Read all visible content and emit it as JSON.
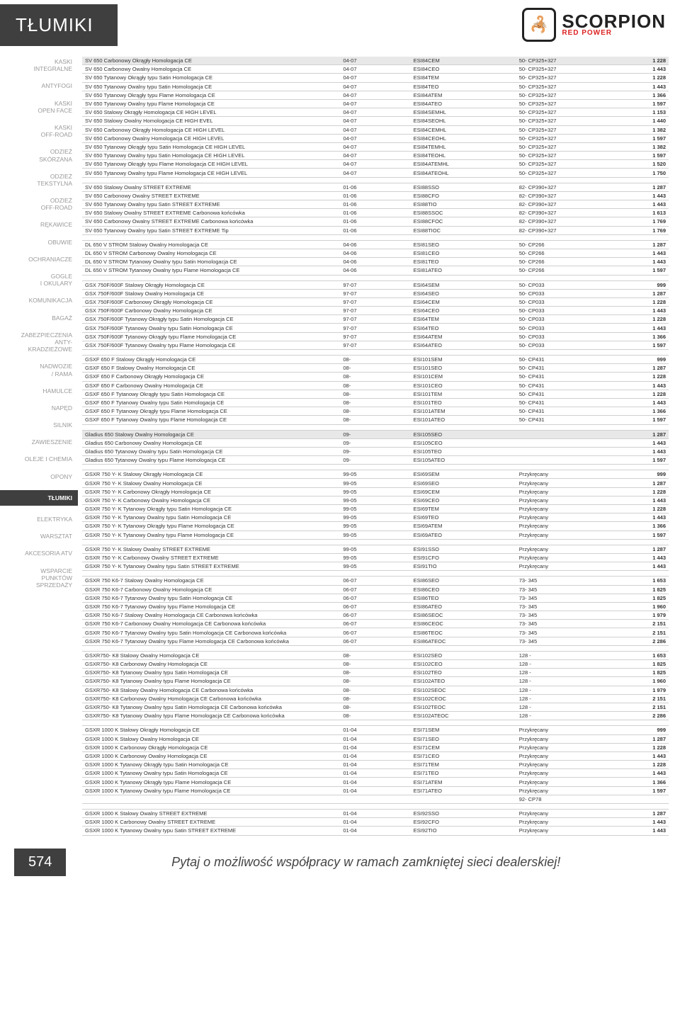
{
  "header": {
    "title": "TŁUMIKI",
    "logo_main": "SCORPION",
    "logo_sub": "RED POWER",
    "logo_glyph": "🦂"
  },
  "sidebar": [
    "KASKI\nINTEGRALNE",
    "ANTYFOGI",
    "KASKI\nOPEN FACE",
    "KASKI\nOFF-ROAD",
    "ODZIEŻ\nSKÓRZANA",
    "ODZIEŻ\nTEKSTYLNA",
    "ODZIEŻ\nOFF-ROAD",
    "RĘKAWICE",
    "OBUWIE",
    "OCHRANIACZE",
    "GOGLE\nI OKULARY",
    "KOMUNIKACJA",
    "BAGAŻ",
    "ZABEZPIECZENIA\nANTY-\nKRADZIEŻOWE",
    "NADWOZIE\n/ RAMA",
    "HAMULCE",
    "NAPĘD",
    "SILNIK",
    "ZAWIESZENIE",
    "OLEJE I CHEMIA",
    "OPONY",
    "TŁUMIKI",
    "ELEKTRYKA",
    "WARSZTAT",
    "AKCESORIA ATV",
    "WSPARCIE\nPUNKTÓW\nSPRZEDAŻY"
  ],
  "sidebar_active_index": 21,
  "colors": {
    "header_bg": "#3f3f3f",
    "header_fg": "#ffffff",
    "shade_bg": "#e8e8e8",
    "border": "#d0d0d0",
    "muted": "#999999",
    "accent_red": "#d22222"
  },
  "footer": {
    "page": "574",
    "slogan": "Pytaj o możliwość współpracy w ramach zamkniętej sieci dealerskiej!"
  },
  "groups": [
    {
      "rows": [
        {
          "name": "SV 650 Carbonowy Okrągły Homologacja CE",
          "yr": "04-07",
          "code": "ESI84CEM",
          "spec": "50- CP325+327",
          "price": "1 228",
          "shade": true
        },
        {
          "name": "SV 650 Carbonowy Owalny Homologacja CE",
          "yr": "04-07",
          "code": "ESI84CEO",
          "spec": "50- CP325+327",
          "price": "1 443"
        },
        {
          "name": "SV 650 Tytanowy Okrągły typu Satin Homologacja CE",
          "yr": "04-07",
          "code": "ESI84TEM",
          "spec": "50- CP325+327",
          "price": "1 228"
        },
        {
          "name": "SV 650 Tytanowy Owalny typu Satin Homologacja CE",
          "yr": "04-07",
          "code": "ESI84TEO",
          "spec": "50- CP325+327",
          "price": "1 443"
        },
        {
          "name": "SV 650 Tytanowy Okrągły typu Flame Homologacja CE",
          "yr": "04-07",
          "code": "ESI84ATEM",
          "spec": "50- CP325+327",
          "price": "1 366"
        },
        {
          "name": "SV 650 Tytanowy Owalny typu Flame Homologacja CE",
          "yr": "04-07",
          "code": "ESI84ATEO",
          "spec": "50- CP325+327",
          "price": "1 597"
        },
        {
          "name": "SV 650 Stalowy Okrągły Homologacja CE  HIGH LEVEL",
          "yr": "04-07",
          "code": "ESI84SEMHL",
          "spec": "50- CP325+327",
          "price": "1 153"
        },
        {
          "name": "SV 650 Stalowy Owalny Homologacja CE  HIGH EVEL",
          "yr": "04-07",
          "code": "ESI84SEOHL",
          "spec": "50- CP325+327",
          "price": "1 440"
        },
        {
          "name": "SV 650 Carbonowy Okrągły Homologacja CE  HIGH LEVEL",
          "yr": "04-07",
          "code": "ESI84CEMHL",
          "spec": "50- CP325+327",
          "price": "1 382"
        },
        {
          "name": "SV 650 Carbonowy Owalny Homologacja CE  HIGH LEVEL",
          "yr": "04-07",
          "code": "ESI84CEOHL",
          "spec": "50- CP325+327",
          "price": "1 597"
        },
        {
          "name": "SV 650 Tytanowy Okrągły typu Satin Homologacja CE  HIGH LEVEL",
          "yr": "04-07",
          "code": "ESI84TEMHL",
          "spec": "50- CP325+327",
          "price": "1 382"
        },
        {
          "name": "SV 650 Tytanowy Owalny typu Satin Homologacja CE  HIGH LEVEL",
          "yr": "04-07",
          "code": "ESI84TEOHL",
          "spec": "50- CP325+327",
          "price": "1 597"
        },
        {
          "name": "SV 650 Tytanowy Okrągły typu Flame Homologacja CE  HIGH LEVEL",
          "yr": "04-07",
          "code": "ESI84ATEMHL",
          "spec": "50- CP325+327",
          "price": "1 520"
        },
        {
          "name": "SV 650 Tytanowy Owalny typu Flame Homologacja CE  HIGH LEVEL",
          "yr": "04-07",
          "code": "ESI84ATEOHL",
          "spec": "50- CP325+327",
          "price": "1 750"
        }
      ]
    },
    {
      "rows": [
        {
          "name": "SV 650 Stalowy Owalny STREET EXTREME",
          "yr": "01-06",
          "code": "ESI88SSO",
          "spec": "82- CP390+327",
          "price": "1 287"
        },
        {
          "name": "SV 650 Carbonowy Owalny STREET EXTREME",
          "yr": "01-06",
          "code": "ESI88CFO",
          "spec": "82- CP390+327",
          "price": "1 443"
        },
        {
          "name": "SV 650 Tytanowy Owalny typu Satin STREET EXTREME",
          "yr": "01-06",
          "code": "ESI88TIO",
          "spec": "82- CP390+327",
          "price": "1 443"
        },
        {
          "name": "SV 650 Stalowy Owalny STREET EXTREME Carbonowa końcówka",
          "yr": "01-06",
          "code": "ESI88SSOC",
          "spec": "82- CP390+327",
          "price": "1 613"
        },
        {
          "name": "SV 650 Carbonowy Owalny STREET EXTREME Carbonowa końcówka",
          "yr": "01-06",
          "code": "ESI88CFOC",
          "spec": "82- CP390+327",
          "price": "1 769"
        },
        {
          "name": "SV 650 Tytanowy Owalny typu Satin STREET EXTREME Tip",
          "yr": "01-06",
          "code": "ESI88TIOC",
          "spec": "82- CP390+327",
          "price": "1 769"
        }
      ]
    },
    {
      "rows": [
        {
          "name": "DL 650 V STROM Stalowy Owalny Homologacja CE",
          "yr": "04-06",
          "code": "ESI81SEO",
          "spec": "50- CP266",
          "price": "1 287"
        },
        {
          "name": "DL 650 V STROM Carbonowy Owalny Homologacja CE",
          "yr": "04-06",
          "code": "ESI81CEO",
          "spec": "50- CP266",
          "price": "1 443"
        },
        {
          "name": "DL 650 V STROM Tytanowy Owalny typu Satin Homologacja CE",
          "yr": "04-06",
          "code": "ESI81TEO",
          "spec": "50- CP266",
          "price": "1 443"
        },
        {
          "name": "DL 650 V STROM Tytanowy Owalny typu Flame Homologacja CE",
          "yr": "04-06",
          "code": "ESI81ATEO",
          "spec": "50- CP266",
          "price": "1 597"
        }
      ]
    },
    {
      "rows": [
        {
          "name": "GSX 750F/600F Stalowy Okrągły Homologacja CE",
          "yr": "97-07",
          "code": "ESI64SEM",
          "spec": "50- CP033",
          "price": "999"
        },
        {
          "name": "GSX 750F/600F Stalowy Owalny Homologacja CE",
          "yr": "97-07",
          "code": "ESI64SEO",
          "spec": "50- CP033",
          "price": "1 287"
        },
        {
          "name": "GSX 750F/600F Carbonowy Okrągły Homologacja CE",
          "yr": "97-07",
          "code": "ESI64CEM",
          "spec": "50- CP033",
          "price": "1 228"
        },
        {
          "name": "GSX 750F/600F Carbonowy Owalny Homologacja CE",
          "yr": "97-07",
          "code": "ESI64CEO",
          "spec": "50- CP033",
          "price": "1 443"
        },
        {
          "name": "GSX 750F/600F Tytanowy Okrągły typu Satin Homologacja CE",
          "yr": "97-07",
          "code": "ESI64TEM",
          "spec": "50- CP033",
          "price": "1 228"
        },
        {
          "name": "GSX 750F/600F Tytanowy Owalny typu Satin Homologacja CE",
          "yr": "97-07",
          "code": "ESI64TEO",
          "spec": "50- CP033",
          "price": "1 443"
        },
        {
          "name": "GSX 750F/600F Tytanowy Okrągły typu Flame Homologacja CE",
          "yr": "97-07",
          "code": "ESI64ATEM",
          "spec": "50- CP033",
          "price": "1 366"
        },
        {
          "name": "GSX 750F/600F Tytanowy Owalny typu Flame Homologacja CE",
          "yr": "97-07",
          "code": "ESI64ATEO",
          "spec": "50- CP033",
          "price": "1 597"
        }
      ]
    },
    {
      "rows": [
        {
          "name": "GSXF 650 F Stalowy Okrągły Homologacja CE",
          "yr": "08-",
          "code": "ESI101SEM",
          "spec": "50- CP431",
          "price": "999"
        },
        {
          "name": "GSXF 650 F Stalowy Owalny Homologacja CE",
          "yr": "08-",
          "code": "ESI101SEO",
          "spec": "50- CP431",
          "price": "1 287"
        },
        {
          "name": "GSXF 650 F Carbonowy Okrągły Homologacja CE",
          "yr": "08-",
          "code": "ESI101CEM",
          "spec": "50- CP431",
          "price": "1 228"
        },
        {
          "name": "GSXF 650 F Carbonowy Owalny Homologacja CE",
          "yr": "08-",
          "code": "ESI101CEO",
          "spec": "50- CP431",
          "price": "1 443"
        },
        {
          "name": "GSXF 650 F Tytanowy Okrągły typu Satin Homologacja CE",
          "yr": "08-",
          "code": "ESI101TEM",
          "spec": "50- CP431",
          "price": "1 228"
        },
        {
          "name": "GSXF 650 F Tytanowy Owalny typu Satin Homologacja CE",
          "yr": "08-",
          "code": "ESI101TEO",
          "spec": "50- CP431",
          "price": "1 443"
        },
        {
          "name": "GSXF 650 F Tytanowy Okrągły typu Flame Homologacja CE",
          "yr": "08-",
          "code": "ESI101ATEM",
          "spec": "50- CP431",
          "price": "1 366"
        },
        {
          "name": "GSXF 650 F Tytanowy Owalny typu Flame Homologacja CE",
          "yr": "08-",
          "code": "ESI101ATEO",
          "spec": "50- CP431",
          "price": "1 597"
        }
      ]
    },
    {
      "rows": [
        {
          "name": "Gladius 650 Stalowy Owalny Homologacja CE",
          "yr": "09-",
          "code": "ESI105SEO",
          "spec": "",
          "price": "1 287",
          "shade": true
        },
        {
          "name": "Gladius 650 Carbonowy Owalny Homologacja CE",
          "yr": "09-",
          "code": "ESI105CEO",
          "spec": "",
          "price": "1 443"
        },
        {
          "name": "Gladius 650 Tytanowy Owalny typu Satin Homologacja CE",
          "yr": "09-",
          "code": "ESI105TEO",
          "spec": "",
          "price": "1 443"
        },
        {
          "name": "Gladius 650 Tytanowy Owalny typu Flame Homologacja CE",
          "yr": "09-",
          "code": "ESI105ATEO",
          "spec": "",
          "price": "1 597"
        }
      ]
    },
    {
      "rows": [
        {
          "name": "GSXR 750 Y- K Stalowy Okrągły Homologacja CE",
          "yr": "99-05",
          "code": "ESI69SEM",
          "spec": "Przykręcany",
          "price": "999"
        },
        {
          "name": "GSXR 750 Y- K Stalowy Owalny Homologacja CE",
          "yr": "99-05",
          "code": "ESI69SEO",
          "spec": "Przykręcany",
          "price": "1 287"
        },
        {
          "name": "GSXR 750 Y- K Carbonowy Okrągły Homologacja CE",
          "yr": "99-05",
          "code": "ESI69CEM",
          "spec": "Przykręcany",
          "price": "1 228"
        },
        {
          "name": "GSXR 750 Y- K Carbonowy Owalny Homologacja CE",
          "yr": "99-05",
          "code": "ESI69CEO",
          "spec": "Przykręcany",
          "price": "1 443"
        },
        {
          "name": "GSXR 750 Y- K Tytanowy Okrągły typu Satin Homologacja CE",
          "yr": "99-05",
          "code": "ESI69TEM",
          "spec": "Przykręcany",
          "price": "1 228"
        },
        {
          "name": "GSXR 750 Y- K Tytanowy Owalny typu Satin Homologacja CE",
          "yr": "99-05",
          "code": "ESI69TEO",
          "spec": "Przykręcany",
          "price": "1 443"
        },
        {
          "name": "GSXR 750 Y- K Tytanowy Okrągły typu Flame Homologacja CE",
          "yr": "99-05",
          "code": "ESI69ATEM",
          "spec": "Przykręcany",
          "price": "1 366"
        },
        {
          "name": "GSXR 750 Y- K Tytanowy Owalny typu Flame Homologacja CE",
          "yr": "99-05",
          "code": "ESI69ATEO",
          "spec": "Przykręcany",
          "price": "1 597"
        }
      ]
    },
    {
      "rows": [
        {
          "name": "GSXR 750 Y- K Stalowy Owalny STREET EXTREME",
          "yr": "99-05",
          "code": "ESI91SSO",
          "spec": "Przykręcany",
          "price": "1 287"
        },
        {
          "name": "GSXR 750 Y- K Carbonowy Owalny STREET EXTREME",
          "yr": "99-05",
          "code": "ESI91CFO",
          "spec": "Przykręcany",
          "price": "1 443"
        },
        {
          "name": "GSXR 750 Y- K Tytanowy Owalny typu Satin STREET EXTREME",
          "yr": "99-05",
          "code": "ESI91TIO",
          "spec": "Przykręcany",
          "price": "1 443"
        }
      ]
    },
    {
      "rows": [
        {
          "name": "GSXR 750 K6-7 Stalowy Owalny Homologacja CE",
          "yr": "06-07",
          "code": "ESI86SEO",
          "spec": "73- 345",
          "price": "1 653"
        },
        {
          "name": "GSXR 750 K6-7 Carbonowy Owalny Homologacja CE",
          "yr": "06-07",
          "code": "ESI86CEO",
          "spec": "73- 345",
          "price": "1 825"
        },
        {
          "name": "GSXR 750 K6-7 Tytanowy Owalny typu Satin Homologacja CE",
          "yr": "06-07",
          "code": "ESI86TEO",
          "spec": "73- 345",
          "price": "1 825"
        },
        {
          "name": "GSXR 750 K6-7 Tytanowy Owalny typu Flame Homologacja CE",
          "yr": "06-07",
          "code": "ESI86ATEO",
          "spec": "73- 345",
          "price": "1 960"
        },
        {
          "name": "GSXR 750 K6-7 Stalowy Owalny Homologacja CE  Carbonowa końcówka",
          "yr": "06-07",
          "code": "ESI86SEOC",
          "spec": "73- 345",
          "price": "1 979"
        },
        {
          "name": "GSXR 750 K6-7 Carbonowy Owalny Homologacja CE  Carbonowa końcówka",
          "yr": "06-07",
          "code": "ESI86CEOC",
          "spec": "73- 345",
          "price": "2 151"
        },
        {
          "name": "GSXR 750 K6-7 Tytanowy Owalny typu Satin Homologacja CE  Carbonowa końcówka",
          "yr": "06-07",
          "code": "ESI86TEOC",
          "spec": "73- 345",
          "price": "2 151"
        },
        {
          "name": "GSXR 750 K6-7 Tytanowy Owalny typu Flame Homologacja CE  Carbonowa końcówka",
          "yr": "06-07",
          "code": "ESI86ATEOC",
          "spec": "73- 345",
          "price": "2 286"
        }
      ]
    },
    {
      "rows": [
        {
          "name": "GSXR750- K8  Stalowy Owalny Homologacja CE",
          "yr": "08-",
          "code": "ESI102SEO",
          "spec": "128 -",
          "price": "1 653"
        },
        {
          "name": "GSXR750- K8  Carbonowy Owalny Homologacja CE",
          "yr": "08-",
          "code": "ESI102CEO",
          "spec": "128 -",
          "price": "1 825"
        },
        {
          "name": "GSXR750- K8  Tytanowy Owalny typu Satin Homologacja CE",
          "yr": "08-",
          "code": "ESI102TEO",
          "spec": "128 -",
          "price": "1 825"
        },
        {
          "name": "GSXR750- K8  Tytanowy Owalny typu Flame Homologacja CE",
          "yr": "08-",
          "code": "ESI102ATEO",
          "spec": "128 -",
          "price": "1 960"
        },
        {
          "name": "GSXR750- K8  Stalowy Owalny Homologacja CE  Carbonowa końcówka",
          "yr": "08-",
          "code": "ESI102SEOC",
          "spec": "128 -",
          "price": "1 979"
        },
        {
          "name": "GSXR750- K8  Carbonowy Owalny Homologacja CE  Carbonowa końcówka",
          "yr": "08-",
          "code": "ESI102CEOC",
          "spec": "128 -",
          "price": "2 151"
        },
        {
          "name": "GSXR750- K8  Tytanowy Owalny typu Satin Homologacja CE  Carbonowa końcówka",
          "yr": "08-",
          "code": "ESI102TEOC",
          "spec": "128 -",
          "price": "2 151"
        },
        {
          "name": "GSXR750- K8  Tytanowy Owalny typu Flame Homologacja CE  Carbonowa końcówka",
          "yr": "08-",
          "code": "ESI102ATEOC",
          "spec": "128 -",
          "price": "2 286"
        }
      ]
    },
    {
      "rows": [
        {
          "name": "GSXR 1000 K Stalowy Okrągły Homologacja CE",
          "yr": "01-04",
          "code": "ESI71SEM",
          "spec": "Przykręcany",
          "price": "999"
        },
        {
          "name": "GSXR 1000 K Stalowy Owalny Homologacja CE",
          "yr": "01-04",
          "code": "ESI71SEO",
          "spec": "Przykręcany",
          "price": "1 287"
        },
        {
          "name": "GSXR 1000 K Carbonowy Okrągły Homologacja CE",
          "yr": "01-04",
          "code": "ESI71CEM",
          "spec": "Przykręcany",
          "price": "1 228"
        },
        {
          "name": "GSXR 1000 K Carbonowy Owalny Homologacja CE",
          "yr": "01-04",
          "code": "ESI71CEO",
          "spec": "Przykręcany",
          "price": "1 443"
        },
        {
          "name": "GSXR 1000 K Tytanowy Okrągły typu Satin Homologacja CE",
          "yr": "01-04",
          "code": "ESI71TEM",
          "spec": "Przykręcany",
          "price": "1 228"
        },
        {
          "name": "GSXR 1000 K Tytanowy Owalny typu Satin Homologacja CE",
          "yr": "01-04",
          "code": "ESI71TEO",
          "spec": "Przykręcany",
          "price": "1 443"
        },
        {
          "name": "GSXR 1000 K Tytanowy Okrągły typu Flame Homologacja CE",
          "yr": "01-04",
          "code": "ESI71ATEM",
          "spec": "Przykręcany",
          "price": "1 366"
        },
        {
          "name": "GSXR 1000 K Tytanowy Owalny typu Flame Homologacja CE",
          "yr": "01-04",
          "code": "ESI71ATEO",
          "spec": "Przykręcany",
          "price": "1 597"
        },
        {
          "name": "",
          "yr": "",
          "code": "",
          "spec": "92- CP78",
          "price": ""
        }
      ]
    },
    {
      "rows": [
        {
          "name": "GSXR 1000 K Stalowy Owalny STREET EXTREME",
          "yr": "01-04",
          "code": "ESI92SSO",
          "spec": "Przykręcany",
          "price": "1 287"
        },
        {
          "name": "GSXR 1000 K Carbonowy Owalny STREET EXTREME",
          "yr": "01-04",
          "code": "ESI92CFO",
          "spec": "Przykręcany",
          "price": "1 443"
        },
        {
          "name": "GSXR 1000 K Tytanowy Owalny typu Satin STREET EXTREME",
          "yr": "01-04",
          "code": "ESI92TIO",
          "spec": "Przykręcany",
          "price": "1 443"
        }
      ]
    }
  ]
}
